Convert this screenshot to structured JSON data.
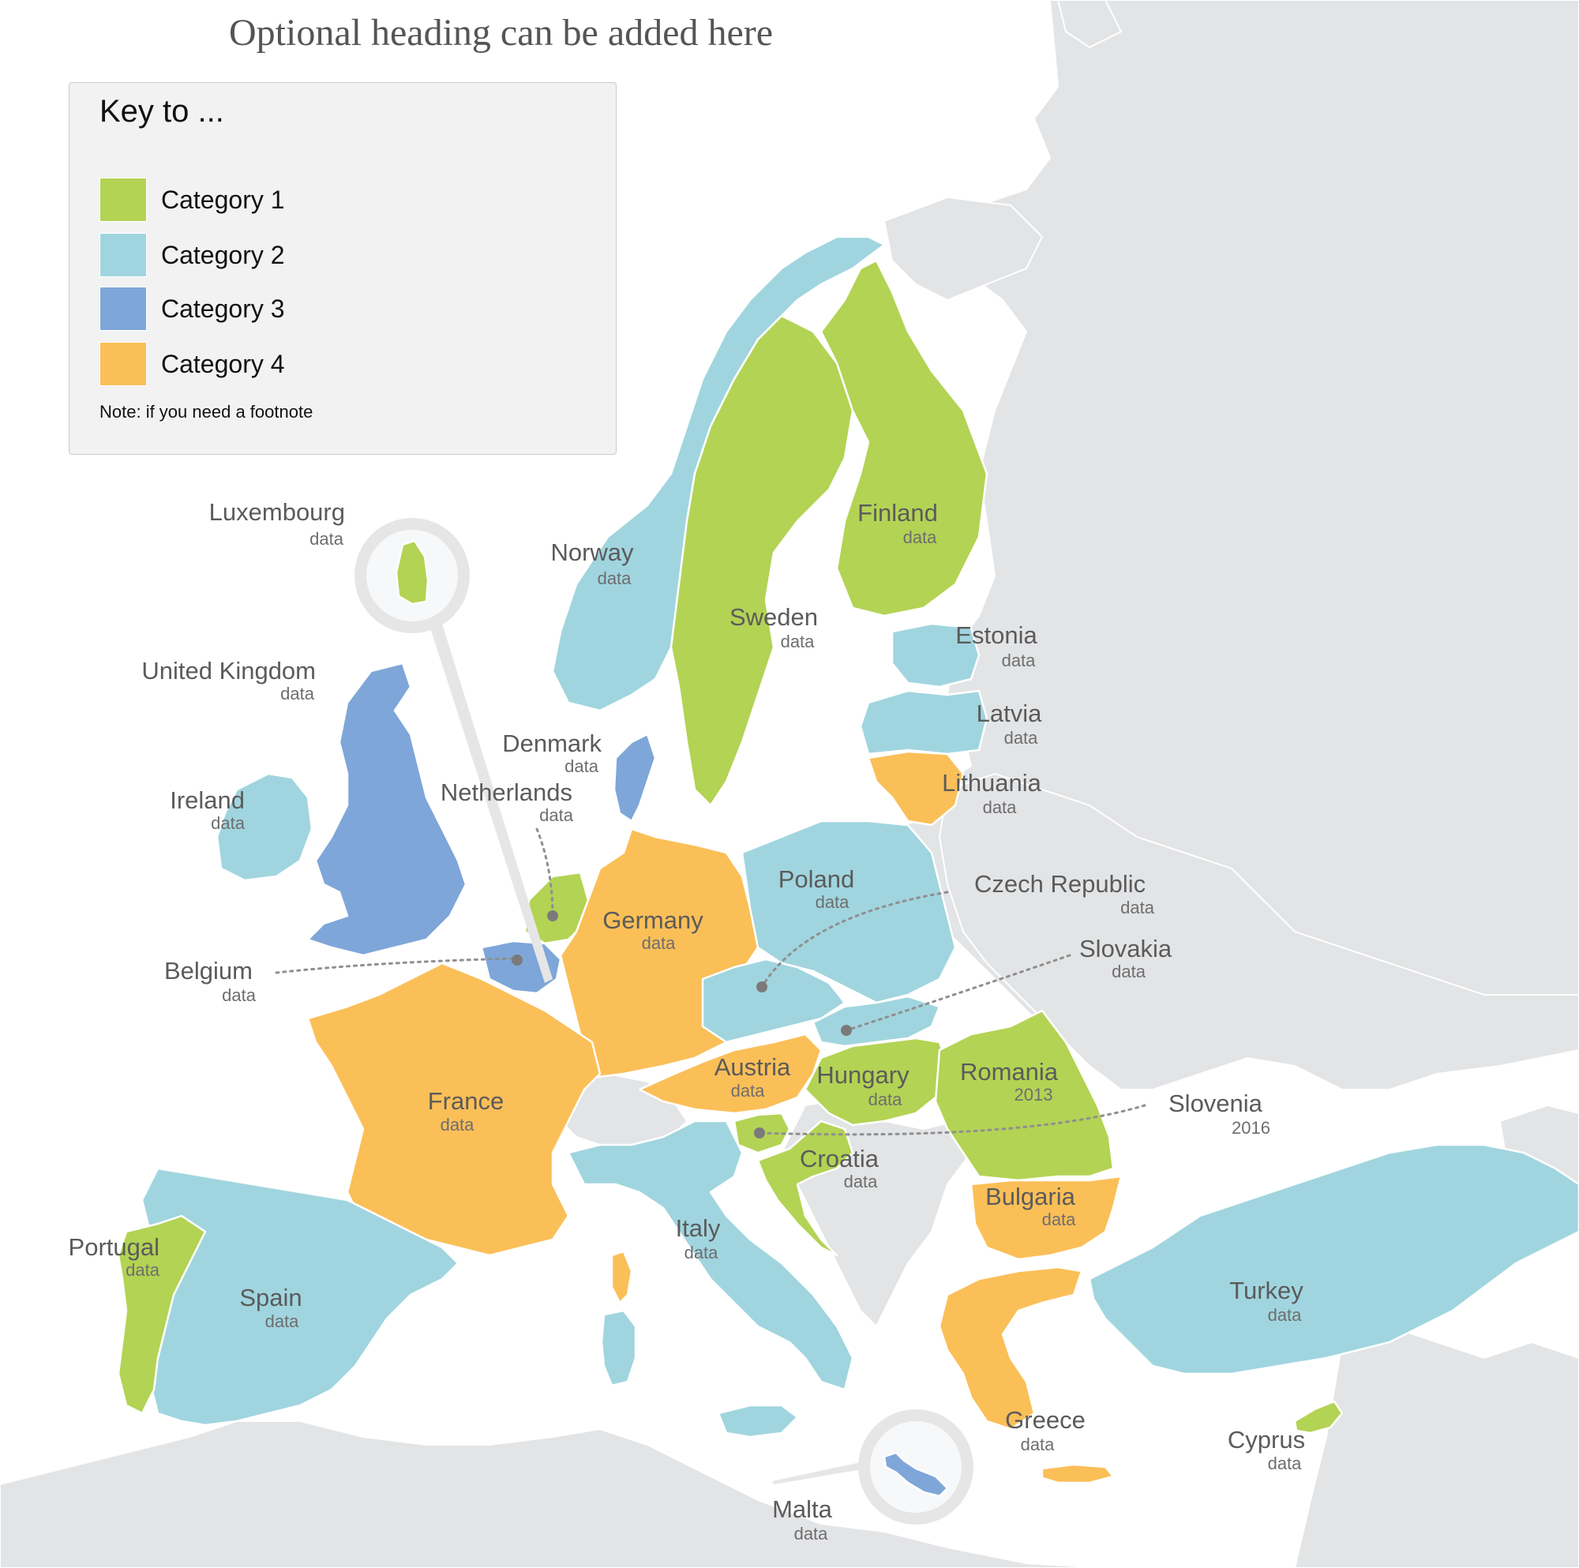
{
  "heading": "Optional heading can be added here",
  "legend": {
    "title": "Key to ...",
    "items": [
      {
        "label": "Category 1",
        "color": "#b3d354"
      },
      {
        "label": "Category 2",
        "color": "#a0d5df"
      },
      {
        "label": "Category 3",
        "color": "#7ea6d8"
      },
      {
        "label": "Category 4",
        "color": "#fbbf58"
      }
    ],
    "note": "Note: if you need a footnote"
  },
  "colors": {
    "other_land": "#e3e4e6",
    "sea": "#ffffff",
    "inset_circle": "#e6e6e6"
  },
  "countries": [
    {
      "name": "Norway",
      "value": "data",
      "category": 2
    },
    {
      "name": "Sweden",
      "value": "data",
      "category": 1
    },
    {
      "name": "Finland",
      "value": "data",
      "category": 1
    },
    {
      "name": "Estonia",
      "value": "data",
      "category": 2
    },
    {
      "name": "Latvia",
      "value": "data",
      "category": 2
    },
    {
      "name": "Lithuania",
      "value": "data",
      "category": 4
    },
    {
      "name": "United Kingdom",
      "value": "data",
      "category": 3
    },
    {
      "name": "Ireland",
      "value": "data",
      "category": 2
    },
    {
      "name": "Denmark",
      "value": "data",
      "category": 3
    },
    {
      "name": "Netherlands",
      "value": "data",
      "category": 1
    },
    {
      "name": "Belgium",
      "value": "data",
      "category": 3
    },
    {
      "name": "Luxembourg",
      "value": "data",
      "category": 1
    },
    {
      "name": "Germany",
      "value": "data",
      "category": 4
    },
    {
      "name": "Poland",
      "value": "data",
      "category": 2
    },
    {
      "name": "Czech Republic",
      "value": "data",
      "category": 2
    },
    {
      "name": "Slovakia",
      "value": "data",
      "category": 2
    },
    {
      "name": "Austria",
      "value": "data",
      "category": 4
    },
    {
      "name": "Hungary",
      "value": "data",
      "category": 1
    },
    {
      "name": "Romania",
      "value": "2013",
      "category": 1
    },
    {
      "name": "Slovenia",
      "value": "2016",
      "category": 1
    },
    {
      "name": "Croatia",
      "value": "data",
      "category": 1
    },
    {
      "name": "Bulgaria",
      "value": "data",
      "category": 4
    },
    {
      "name": "France",
      "value": "data",
      "category": 4
    },
    {
      "name": "Italy",
      "value": "data",
      "category": 2
    },
    {
      "name": "Spain",
      "value": "data",
      "category": 2
    },
    {
      "name": "Portugal",
      "value": "data",
      "category": 1
    },
    {
      "name": "Greece",
      "value": "data",
      "category": 4
    },
    {
      "name": "Turkey",
      "value": "data",
      "category": 2
    },
    {
      "name": "Cyprus",
      "value": "data",
      "category": 1
    },
    {
      "name": "Malta",
      "value": "data",
      "category": 3
    }
  ]
}
